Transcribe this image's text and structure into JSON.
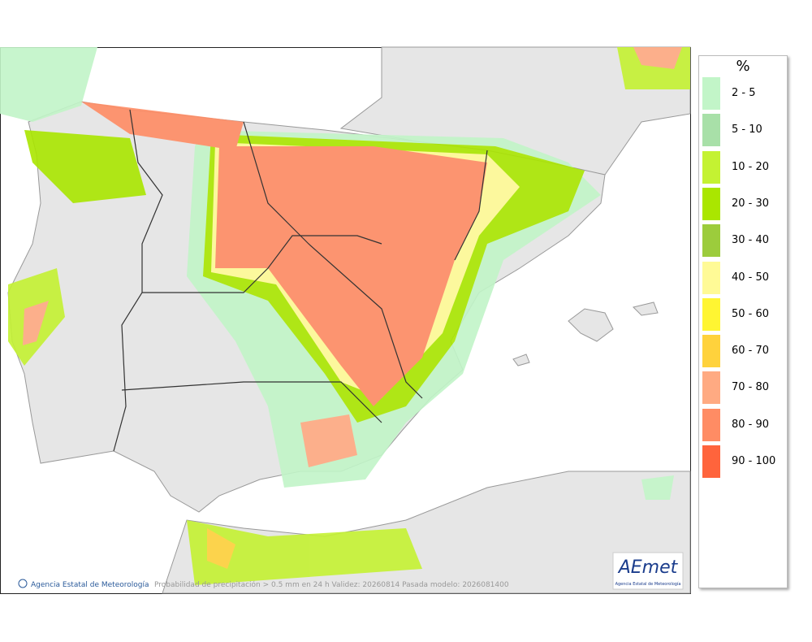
{
  "legend": {
    "title": "%",
    "items": [
      {
        "label": "2 - 5",
        "color": "#c2f5c8"
      },
      {
        "label": "5 - 10",
        "color": "#a8e0a8"
      },
      {
        "label": "10 - 20",
        "color": "#c4f232"
      },
      {
        "label": "20 - 30",
        "color": "#aae600"
      },
      {
        "label": "30 - 40",
        "color": "#9ccc3c"
      },
      {
        "label": "40 - 50",
        "color": "#fffa96"
      },
      {
        "label": "50 - 60",
        "color": "#fff532"
      },
      {
        "label": "60 - 70",
        "color": "#ffd23c"
      },
      {
        "label": "70 - 80",
        "color": "#ffaa82"
      },
      {
        "label": "80 - 90",
        "color": "#ff8c64"
      },
      {
        "label": "90 - 100",
        "color": "#ff643c"
      }
    ]
  },
  "footer": {
    "credit": "Agencia Estatal de Meteorología",
    "caption": "Probabilidad de precipitación > 0.5 mm en 24 h Validez: 20260814 Pasada modelo: 2026081400"
  },
  "logo": {
    "name": "AEmet",
    "subtitle": "Agencia Estatal de Meteorología"
  }
}
